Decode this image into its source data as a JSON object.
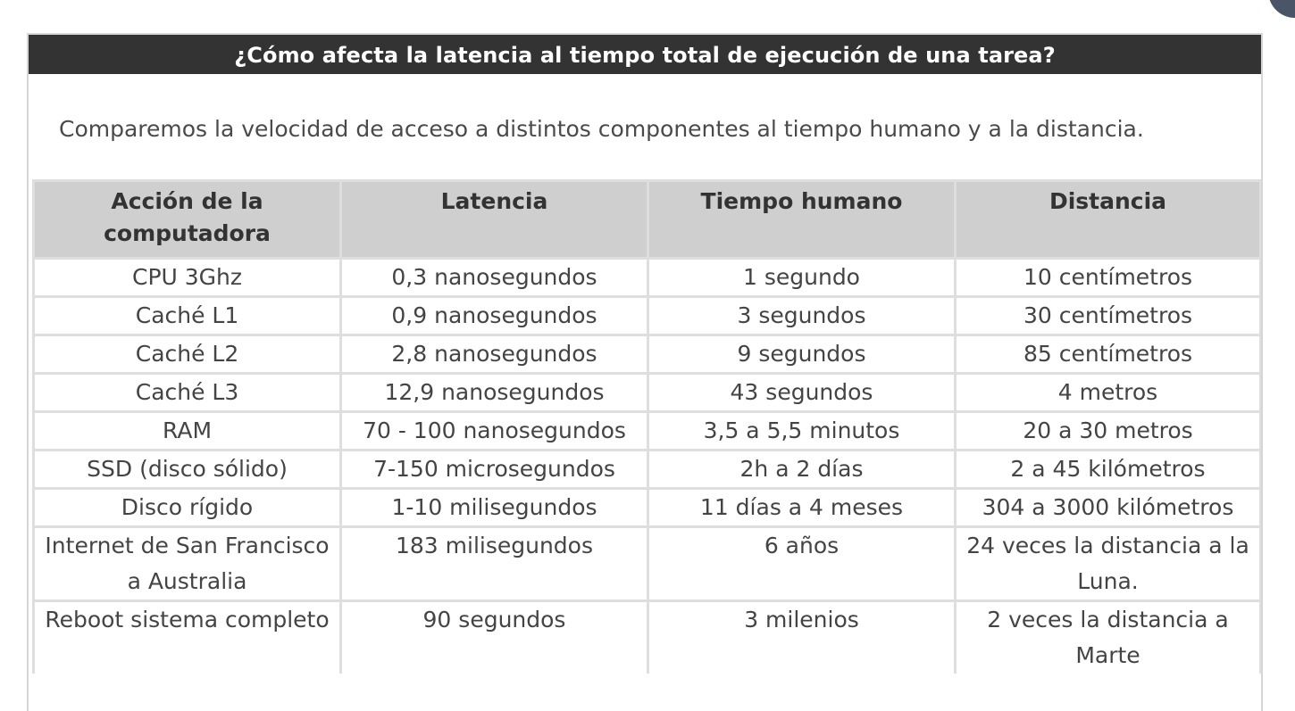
{
  "header": {
    "title": "¿Cómo afecta la latencia al tiempo total de ejecución de una tarea?"
  },
  "intro": {
    "text": "Comparemos la velocidad de acceso a distintos componentes al tiempo humano y a la distancia."
  },
  "table": {
    "columns": [
      "Acción de la computadora",
      "Latencia",
      "Tiempo humano",
      "Distancia"
    ],
    "rows": [
      [
        "CPU 3Ghz",
        "0,3 nanosegundos",
        "1 segundo",
        "10 centímetros"
      ],
      [
        "Caché L1",
        "0,9 nanosegundos",
        "3 segundos",
        "30 centímetros"
      ],
      [
        "Caché L2",
        "2,8 nanosegundos",
        "9 segundos",
        "85 centímetros"
      ],
      [
        "Caché L3",
        "12,9 nanosegundos",
        "43 segundos",
        "4 metros"
      ],
      [
        "RAM",
        "70 - 100 nanosegundos",
        "3,5 a 5,5 minutos",
        "20 a 30 metros"
      ],
      [
        "SSD (disco sólido)",
        "7-150 microsegundos",
        "2h a 2 días",
        "2 a 45 kilómetros"
      ],
      [
        "Disco rígido",
        "1-10 milisegundos",
        "11 días a 4 meses",
        "304 a 3000 kilómetros"
      ],
      [
        "Internet de San Francisco a Australia",
        "183 milisegundos",
        "6 años",
        "24 veces la distancia a la Luna."
      ],
      [
        "Reboot sistema completo",
        "90 segundos",
        "3 milenios",
        "2 veces la distancia a Marte"
      ]
    ]
  }
}
